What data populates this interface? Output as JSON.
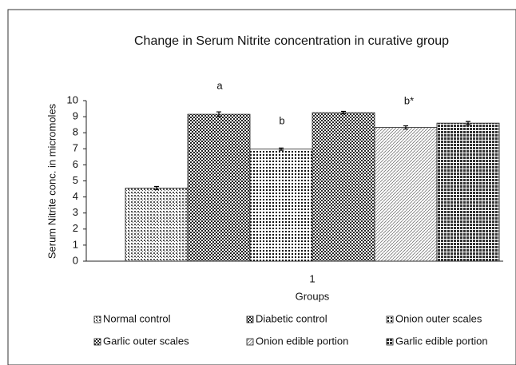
{
  "chart_data": {
    "type": "bar",
    "title": "Change in Serum Nitrite concentration in curative group",
    "x_label": "Groups",
    "y_label": "Serum Nitrite conc. in micromoles",
    "categories": [
      "1"
    ],
    "series": [
      {
        "name": "Normal control",
        "color": "#555555",
        "values": [
          4.55
        ],
        "errors": [
          0.1
        ]
      },
      {
        "name": "Diabetic control",
        "color": "#222222",
        "values": [
          9.15
        ],
        "errors": [
          0.15
        ]
      },
      {
        "name": "Onion outer scales",
        "color": "#111111",
        "values": [
          6.98
        ],
        "errors": [
          0.07
        ]
      },
      {
        "name": "Garlic outer scales",
        "color": "#2a2a2a",
        "values": [
          9.25
        ],
        "errors": [
          0.08
        ]
      },
      {
        "name": "Onion edible portion",
        "color": "#777777",
        "values": [
          8.33
        ],
        "errors": [
          0.1
        ]
      },
      {
        "name": "Garlic edible portion",
        "color": "#333333",
        "values": [
          8.6
        ],
        "errors": [
          0.1
        ]
      }
    ],
    "annotations": [
      "a",
      "b",
      "b*"
    ],
    "ylim": [
      0,
      10
    ],
    "yticks": [
      0,
      1,
      2,
      3,
      4,
      5,
      6,
      7,
      8,
      9,
      10
    ],
    "grid": false
  }
}
